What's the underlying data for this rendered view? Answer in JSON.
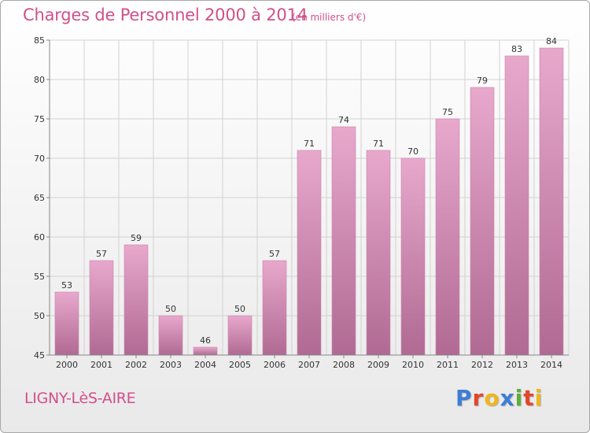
{
  "header": {
    "title": "Charges de Personnel 2000 à 2014",
    "subtitle": "(en milliers d'€)"
  },
  "footer": {
    "town": "LIGNY-LèS-AIRE",
    "brand": {
      "text": "Proxiti",
      "letters": [
        {
          "char": "P",
          "color": "#3d7dd6"
        },
        {
          "char": "r",
          "color": "#e2462b"
        },
        {
          "char": "o",
          "color": "#f0b51e"
        },
        {
          "char": "x",
          "color": "#3d7dd6"
        },
        {
          "char": "i",
          "color": "#5cae3c"
        },
        {
          "char": "t",
          "color": "#e2462b"
        },
        {
          "char": "i",
          "color": "#f0b51e"
        }
      ]
    }
  },
  "chart_data": {
    "type": "bar",
    "title": "Charges de Personnel 2000 à 2014",
    "subtitle": "(en milliers d'€)",
    "categories": [
      "2000",
      "2001",
      "2002",
      "2003",
      "2004",
      "2005",
      "2006",
      "2007",
      "2008",
      "2009",
      "2010",
      "2011",
      "2012",
      "2013",
      "2014"
    ],
    "values": [
      53,
      57,
      59,
      50,
      46,
      50,
      57,
      71,
      74,
      71,
      70,
      75,
      79,
      83,
      84
    ],
    "ylim": [
      45,
      85
    ],
    "yticks": [
      45,
      50,
      55,
      60,
      65,
      70,
      75,
      80,
      85
    ],
    "grid": true,
    "bar_color_top": "#e8a8cc",
    "bar_color_bottom": "#b06a93"
  }
}
